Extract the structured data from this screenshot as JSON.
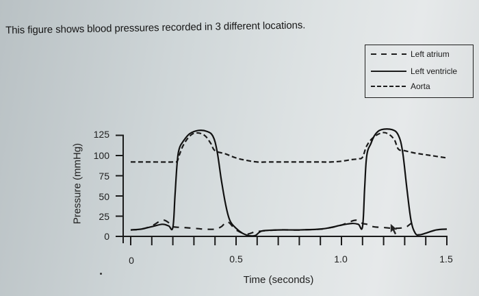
{
  "caption": "This figure shows blood pressures recorded in 3 different locations.",
  "legend": {
    "items": [
      {
        "label": "Left atrium",
        "style": "dashed-long"
      },
      {
        "label": "Left ventricle",
        "style": "solid"
      },
      {
        "label": "Aorta",
        "style": "dashed-short"
      }
    ]
  },
  "axes": {
    "ylabel": "Pressure (mmHg)",
    "xlabel": "Time (seconds)",
    "yticks": [
      "125",
      "100",
      "75",
      "50",
      "25",
      "0"
    ],
    "xticks": [
      "0",
      "0.5",
      "1.0",
      "1.5"
    ]
  },
  "chart_data": {
    "type": "line",
    "title": "This figure shows blood pressures recorded in 3 different locations.",
    "xlabel": "Time (seconds)",
    "ylabel": "Pressure (mmHg)",
    "xlim": [
      0,
      1.5
    ],
    "ylim": [
      0,
      125
    ],
    "x_major_ticks": [
      0,
      0.5,
      1.0,
      1.5
    ],
    "x_minor_tick_step": 0.1,
    "y_ticks": [
      0,
      25,
      50,
      75,
      100,
      125
    ],
    "grid": false,
    "legend_position": "top-right",
    "series": [
      {
        "name": "Left ventricle",
        "line_style": "solid",
        "x": [
          0,
          0.05,
          0.1,
          0.15,
          0.18,
          0.2,
          0.21,
          0.22,
          0.23,
          0.25,
          0.28,
          0.32,
          0.36,
          0.39,
          0.41,
          0.43,
          0.45,
          0.47,
          0.5,
          0.53,
          0.56,
          0.59,
          0.61,
          0.63,
          0.7,
          0.8,
          0.9,
          0.95,
          1.0,
          1.05,
          1.08,
          1.1,
          1.11,
          1.12,
          1.14,
          1.16,
          1.19,
          1.24,
          1.27,
          1.29,
          1.31,
          1.33,
          1.35,
          1.37,
          1.4,
          1.45,
          1.5
        ],
        "values": [
          8,
          9,
          12,
          15,
          13,
          11,
          50,
          90,
          108,
          118,
          127,
          131,
          130,
          124,
          105,
          70,
          40,
          20,
          10,
          4,
          1,
          1,
          5,
          7,
          8,
          8,
          9,
          11,
          14,
          16,
          15,
          12,
          60,
          100,
          115,
          126,
          132,
          132,
          125,
          105,
          60,
          20,
          4,
          2,
          4,
          8,
          9
        ]
      },
      {
        "name": "Aorta",
        "line_style": "dashed",
        "x": [
          0,
          0.1,
          0.2,
          0.22,
          0.23,
          0.25,
          0.28,
          0.31,
          0.35,
          0.38,
          0.4,
          0.45,
          0.5,
          0.55,
          0.6,
          0.65,
          0.7,
          0.8,
          0.9,
          0.95,
          1.0,
          1.05,
          1.08,
          1.1,
          1.12,
          1.15,
          1.19,
          1.22,
          1.25,
          1.27,
          1.3,
          1.35,
          1.4,
          1.45,
          1.5
        ],
        "values": [
          92,
          92,
          92,
          93,
          100,
          113,
          124,
          128,
          125,
          115,
          106,
          102,
          97,
          94,
          92,
          92,
          92,
          92,
          92,
          92,
          93,
          95,
          96,
          98,
          112,
          122,
          128,
          127,
          120,
          108,
          106,
          103,
          101,
          99,
          97
        ]
      },
      {
        "name": "Left atrium",
        "line_style": "dashed",
        "x": [
          0,
          0.05,
          0.1,
          0.15,
          0.18,
          0.2,
          0.25,
          0.3,
          0.35,
          0.4,
          0.43,
          0.46,
          0.5,
          0.55,
          0.6,
          0.7,
          0.8,
          0.9,
          0.95,
          1.0,
          1.04,
          1.07,
          1.1,
          1.12,
          1.15,
          1.2,
          1.25,
          1.3,
          1.32,
          1.35
        ],
        "values": [
          8,
          9,
          13,
          20,
          17,
          12,
          11,
          10,
          9,
          9,
          12,
          18,
          8,
          3,
          6,
          8,
          8,
          9,
          11,
          14,
          18,
          20,
          16,
          15,
          12,
          11,
          10,
          11,
          14,
          20
        ]
      }
    ]
  }
}
